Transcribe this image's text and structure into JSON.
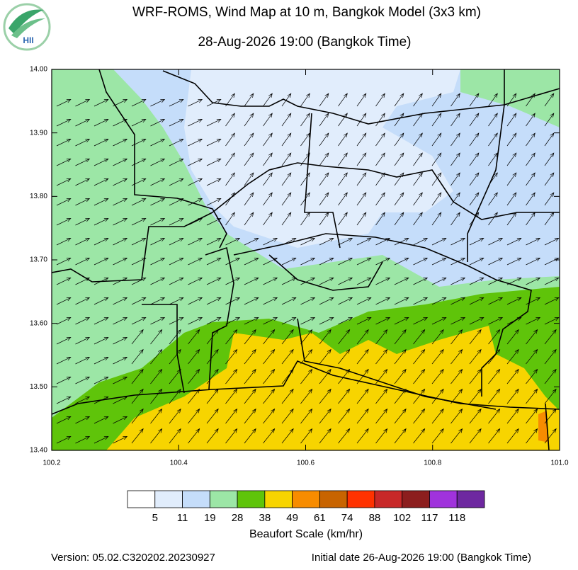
{
  "logo": "HII",
  "title": "WRF-ROMS, Wind Map at 10 m, Bangkok Model (3x3 km)",
  "subtitle": "28-Aug-2026 19:00 (Bangkok Time)",
  "map": {
    "xlim": [
      100.2,
      101.0
    ],
    "ylim": [
      13.4,
      14.0
    ],
    "xticks": [
      100.2,
      100.4,
      100.6,
      100.8,
      {
        "value": 101.0,
        "label": "101.0"
      }
    ],
    "yticks": [
      {
        "value": 13.4,
        "label": "13.40"
      },
      {
        "value": 13.5,
        "label": "13.50"
      },
      {
        "value": 13.6,
        "label": "13.60"
      },
      {
        "value": 13.7,
        "label": "13.70"
      },
      {
        "value": 13.8,
        "label": "13.80"
      },
      {
        "value": 13.9,
        "label": "13.90"
      },
      {
        "value": 14.0,
        "label": "14.00"
      }
    ]
  },
  "colorbar": {
    "colors": [
      "#ffffff",
      "#e1edfc",
      "#c5ddfa",
      "#9ce6a6",
      "#5fc40a",
      "#f7d400",
      "#f78c00",
      "#c86400",
      "#ff3200",
      "#c82828",
      "#8c1e1e",
      "#a032dc",
      "#6e28a0"
    ],
    "labels": [
      5,
      11,
      19,
      28,
      38,
      49,
      61,
      74,
      88,
      102,
      117,
      118
    ],
    "title": "Beaufort Scale (km/hr)"
  },
  "footer": {
    "version": "Version: 05.02.C320202.20230927",
    "initial": "Initial date 26-Aug-2026 19:00 (Bangkok Time)"
  }
}
